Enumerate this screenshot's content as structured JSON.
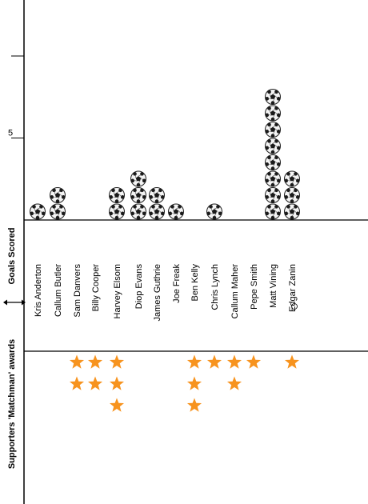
{
  "chart_data": {
    "type": "pictogram",
    "ylabel_top": "Goals Scored",
    "ylabel_bottom": "Supporters 'Matchman' awards",
    "y_ticks": [
      5
    ],
    "ylim": [
      0,
      13
    ],
    "players": [
      "Kris Anderton",
      "Callum Butler",
      "Sam Danvers",
      "Billy Cooper",
      "Harvey Elsom",
      "Diop Evans",
      "James Guthrie",
      "Joe Freak",
      "Ben Kelly",
      "Chris Lynch",
      "Callum Maher",
      "Pepe Smith",
      "Matt Vining",
      "Edgar Zanin"
    ],
    "series": [
      {
        "name": "Goals Scored",
        "icon": "football-icon",
        "values": [
          1,
          2,
          0,
          0,
          2,
          3,
          2,
          1,
          0,
          1,
          0,
          0,
          8,
          3
        ]
      },
      {
        "name": "Supporters 'Matchman' awards",
        "icon": "star-icon",
        "values": [
          0,
          0,
          2,
          2,
          3,
          0,
          0,
          0,
          3,
          1,
          2,
          1,
          0,
          1
        ]
      }
    ],
    "colors": {
      "star": "#f7931e",
      "ball": "#1a1a1a"
    }
  }
}
